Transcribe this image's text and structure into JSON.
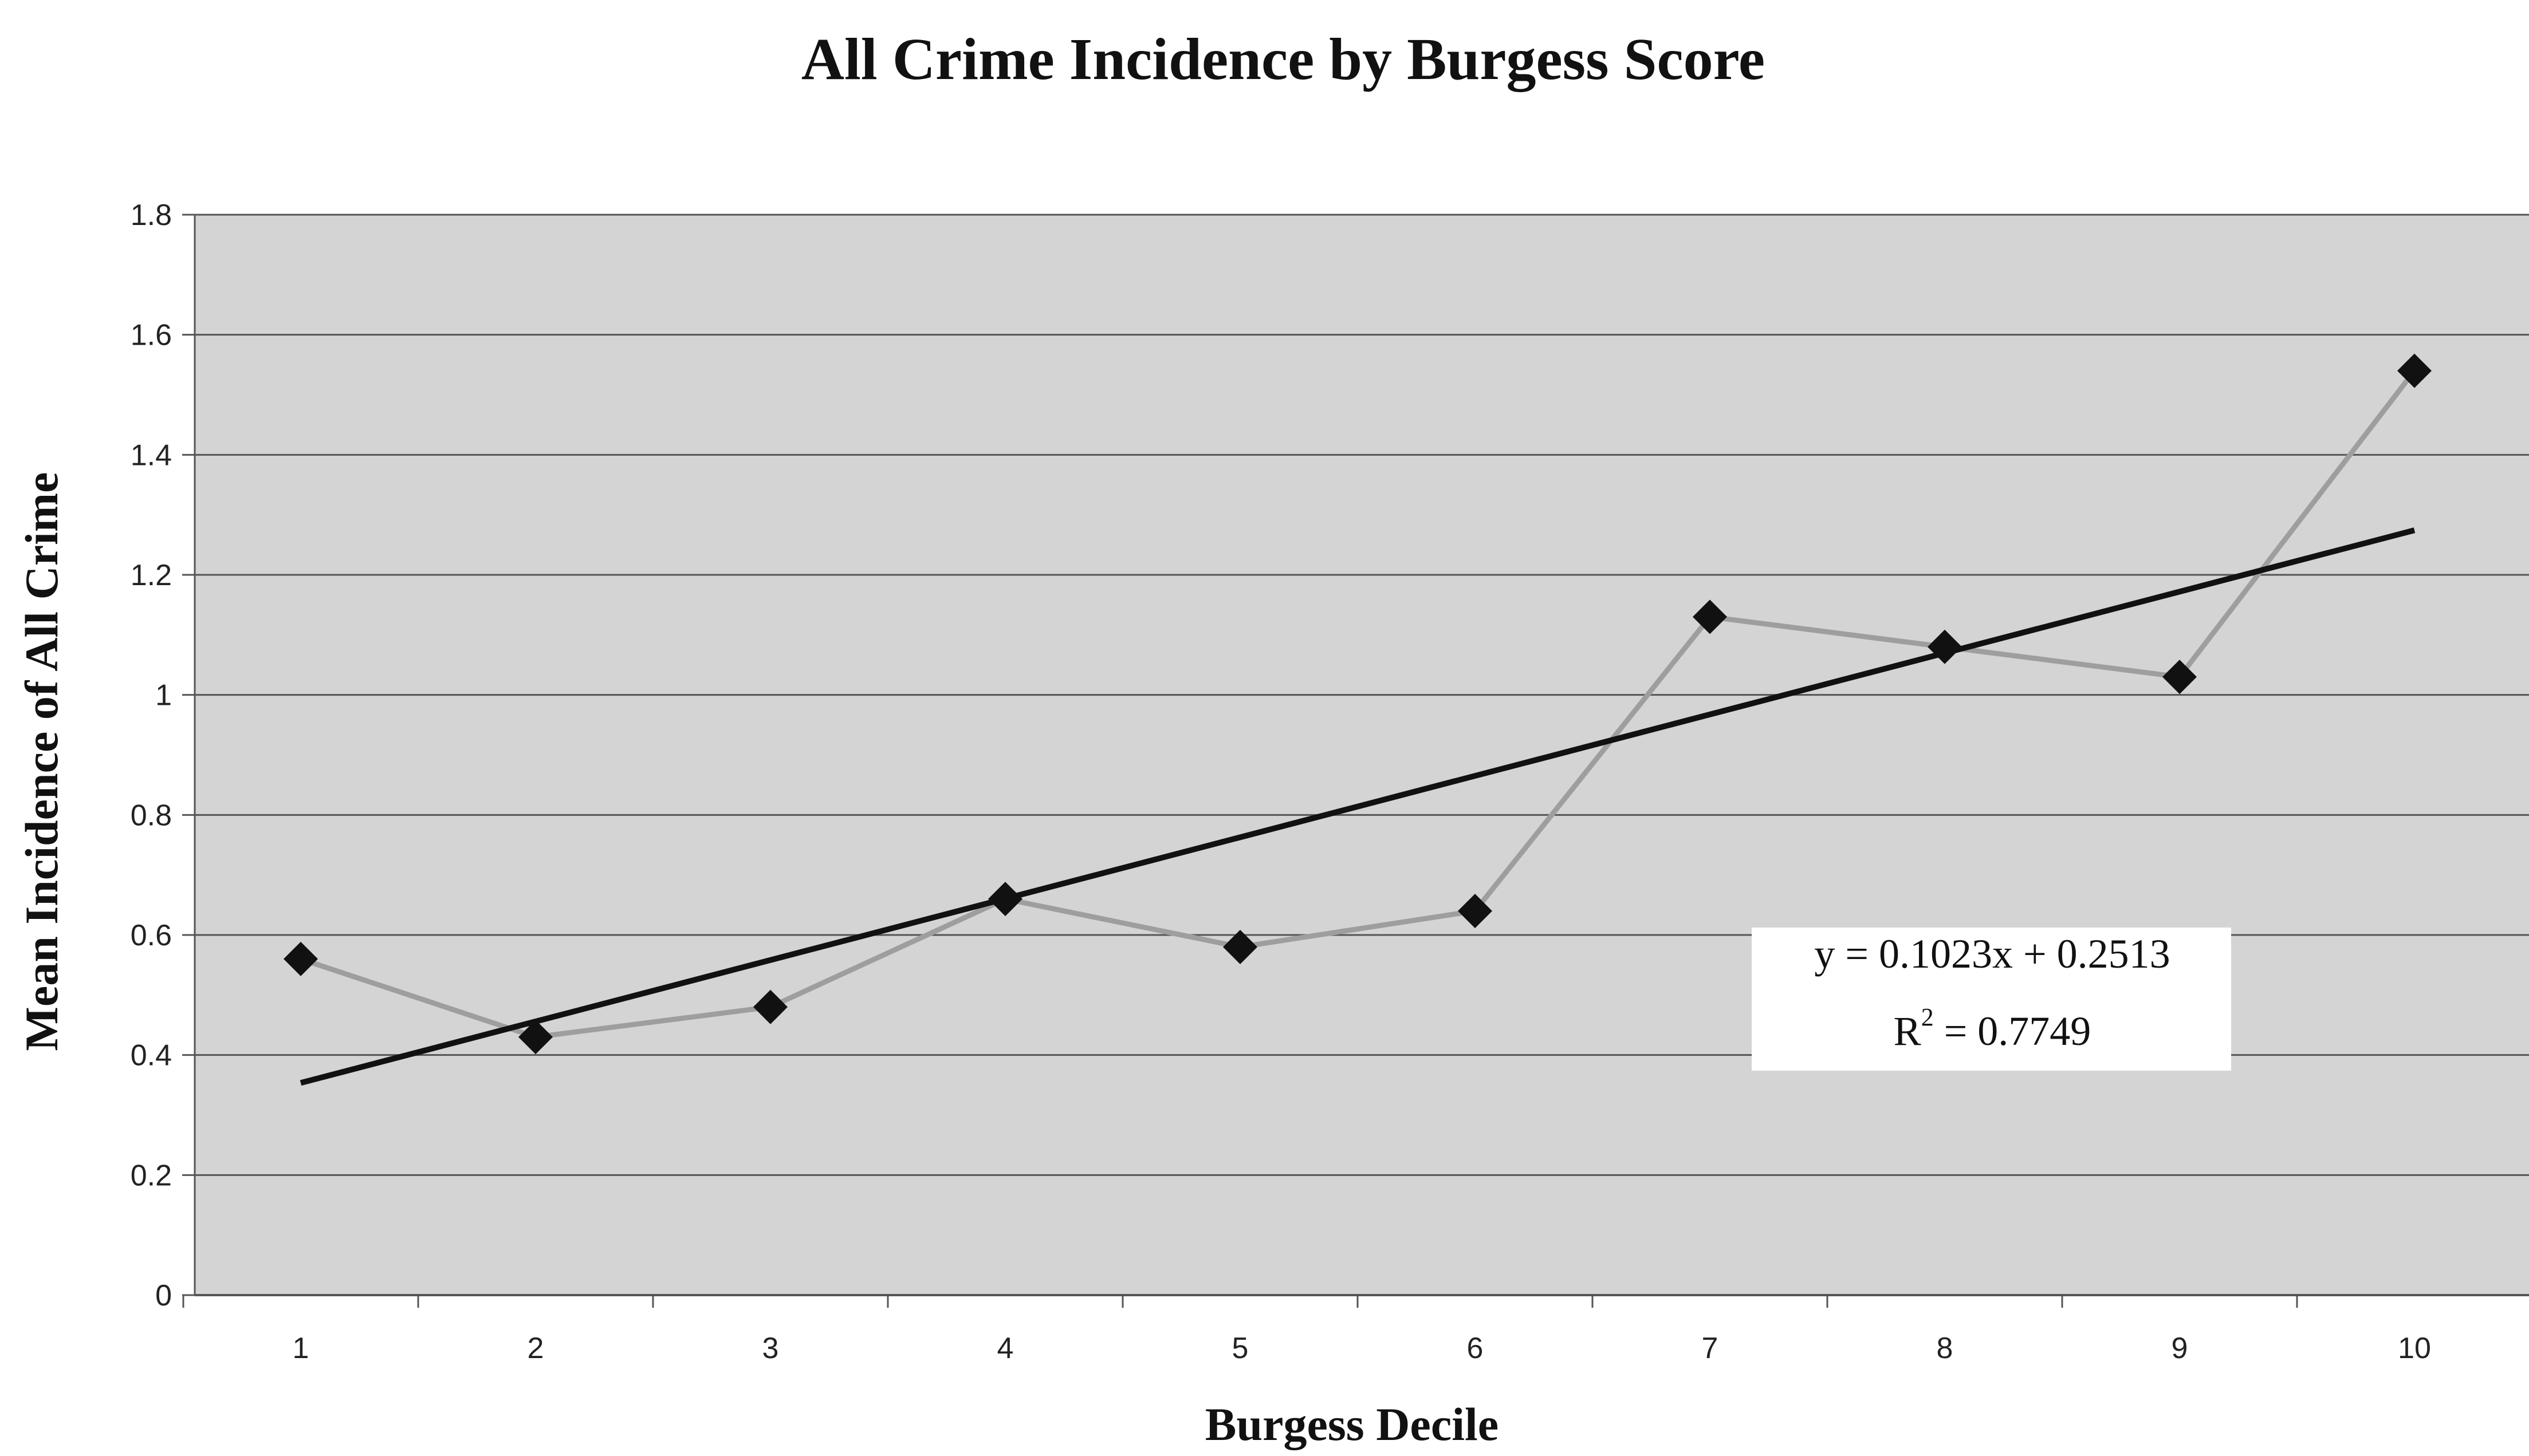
{
  "chart_data": {
    "type": "line",
    "title": "All Crime Incidence by Burgess Score",
    "xlabel": "Burgess Decile",
    "ylabel": "Mean Incidence of All Crime",
    "x": [
      1,
      2,
      3,
      4,
      5,
      6,
      7,
      8,
      9,
      10
    ],
    "series": [
      {
        "values": [
          0.56,
          0.43,
          0.48,
          0.66,
          0.58,
          0.64,
          1.13,
          1.08,
          1.03,
          1.54
        ]
      }
    ],
    "trendline": {
      "type": "linear",
      "slope": 0.1023,
      "intercept": 0.2513,
      "equation": "y = 0.1023x + 0.2513",
      "r2_label": "R",
      "r2_sup": "2",
      "r2_value": " = 0.7749"
    },
    "ylim": [
      0,
      1.8
    ],
    "yticks": [
      "0",
      "0.2",
      "0.4",
      "0.6",
      "0.8",
      "1",
      "1.2",
      "1.4",
      "1.6",
      "1.8"
    ],
    "xticks": [
      "1",
      "2",
      "3",
      "4",
      "5",
      "6",
      "7",
      "8",
      "9",
      "10"
    ],
    "grid": true,
    "legend": "none",
    "colors": {
      "plot_background": "#d4d4d4",
      "gridline": "#555555",
      "data_line": "#9e9e9e",
      "marker": "#111111",
      "trendline": "#111111",
      "equation_box": "#ffffff"
    }
  }
}
